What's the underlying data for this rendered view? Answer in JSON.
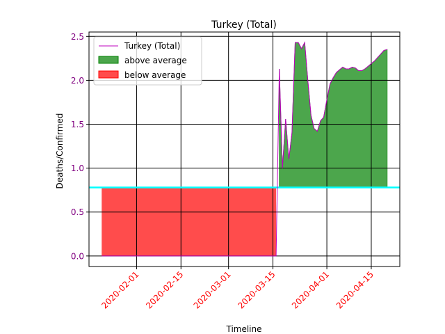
{
  "chart_data": {
    "type": "area",
    "title": "Turkey (Total)",
    "xlabel": "Timeline",
    "ylabel": "Deaths/Confirmed",
    "x_ticks": [
      "2020-02-01",
      "2020-02-15",
      "2020-03-01",
      "2020-03-15",
      "2020-04-01",
      "2020-04-15"
    ],
    "y_ticks": [
      "0.0",
      "0.5",
      "1.0",
      "1.5",
      "2.0",
      "2.5"
    ],
    "xlim": [
      "2020-01-17",
      "2020-04-24"
    ],
    "ylim": [
      -0.12,
      2.55
    ],
    "average": 0.78,
    "grid": true,
    "legend_placement": "upper-left",
    "legend": [
      {
        "label": "Turkey (Total)",
        "kind": "line",
        "color": "#bf00bf"
      },
      {
        "label": "above average",
        "kind": "fill",
        "color": "#008000"
      },
      {
        "label": "below average",
        "kind": "fill",
        "color": "#ff0000"
      }
    ],
    "colors": {
      "line": "#bf00bf",
      "above_fill": "#008000",
      "below_fill": "#ff0000",
      "average_line": "#00ffff",
      "tick_x": "#ff0000",
      "tick_y": "#800080",
      "grid": "#000000"
    },
    "series": [
      {
        "name": "Turkey (Total)",
        "x": [
          "2020-01-21",
          "2020-03-16",
          "2020-03-17",
          "2020-03-18",
          "2020-03-19",
          "2020-03-20",
          "2020-03-21",
          "2020-03-22",
          "2020-03-23",
          "2020-03-24",
          "2020-03-25",
          "2020-03-26",
          "2020-03-27",
          "2020-03-28",
          "2020-03-29",
          "2020-03-30",
          "2020-03-31",
          "2020-04-01",
          "2020-04-02",
          "2020-04-03",
          "2020-04-04",
          "2020-04-05",
          "2020-04-06",
          "2020-04-07",
          "2020-04-08",
          "2020-04-09",
          "2020-04-10",
          "2020-04-11",
          "2020-04-12",
          "2020-04-13",
          "2020-04-14",
          "2020-04-15",
          "2020-04-16",
          "2020-04-17",
          "2020-04-18",
          "2020-04-19",
          "2020-04-20"
        ],
        "values": [
          0.0,
          0.0,
          2.13,
          1.0,
          1.56,
          1.1,
          1.4,
          2.43,
          2.43,
          2.36,
          2.43,
          2.0,
          1.6,
          1.45,
          1.42,
          1.54,
          1.58,
          1.78,
          1.96,
          2.03,
          2.09,
          2.12,
          2.15,
          2.13,
          2.13,
          2.15,
          2.14,
          2.11,
          2.11,
          2.13,
          2.16,
          2.19,
          2.22,
          2.26,
          2.3,
          2.34,
          2.35
        ]
      }
    ]
  }
}
